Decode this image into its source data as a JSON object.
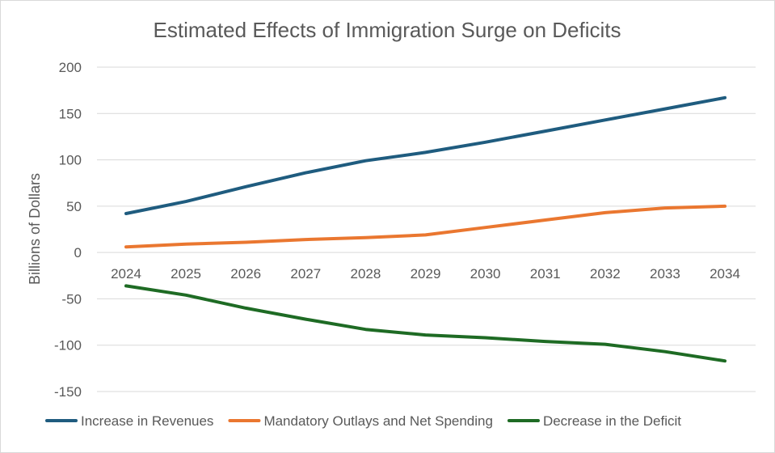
{
  "chart_data": {
    "type": "line",
    "title": "Estimated Effects of Immigration Surge on Deficits",
    "xlabel": "",
    "ylabel": "Billions of Dollars",
    "ylim": [
      -150,
      200
    ],
    "yticks": [
      200,
      150,
      100,
      50,
      0,
      -50,
      -100,
      -150
    ],
    "categories": [
      "2024",
      "2025",
      "2026",
      "2027",
      "2028",
      "2029",
      "2030",
      "2031",
      "2032",
      "2033",
      "2034"
    ],
    "grid": true,
    "legend_position": "bottom",
    "series": [
      {
        "name": "Increase in Revenues",
        "color": "#1f5c7f",
        "values": [
          42,
          55,
          71,
          86,
          99,
          108,
          119,
          131,
          143,
          155,
          167
        ]
      },
      {
        "name": "Mandatory Outlays and Net Spending",
        "color": "#ea7730",
        "values": [
          6,
          9,
          11,
          14,
          16,
          19,
          27,
          35,
          43,
          48,
          50
        ]
      },
      {
        "name": "Decrease in the Deficit",
        "color": "#1e6b24",
        "values": [
          -36,
          -46,
          -60,
          -72,
          -83,
          -89,
          -92,
          -96,
          -99,
          -107,
          -117
        ]
      }
    ]
  }
}
